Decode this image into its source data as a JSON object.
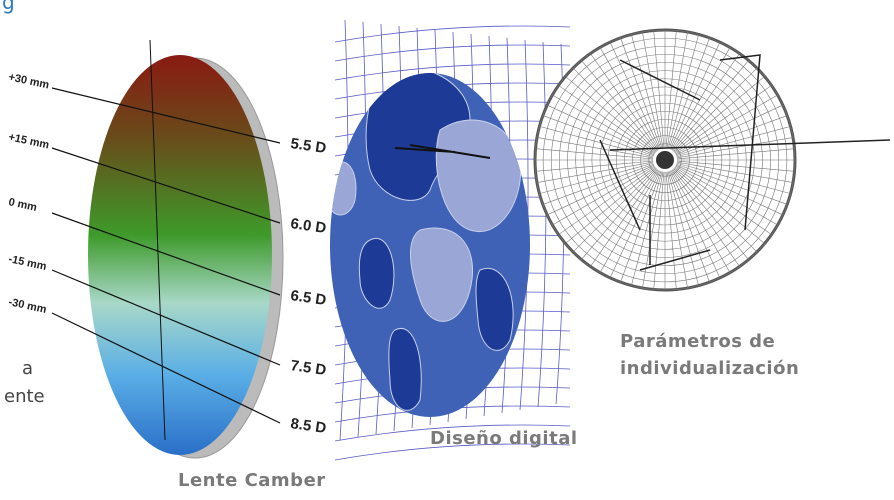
{
  "header_fragment": "g",
  "side_fragments": [
    "a",
    "ente"
  ],
  "lens": {
    "heights": [
      "+30 mm",
      "+15 mm",
      "0 mm",
      "-15 mm",
      "-30 mm"
    ],
    "powers": [
      "5.5 D",
      "6.0 D",
      "6.5 D",
      "7.5 D",
      "8.5 D"
    ]
  },
  "captions": {
    "lens": "Lente Camber",
    "digital": "Diseño digital",
    "params": "Parámetros de individualización"
  }
}
